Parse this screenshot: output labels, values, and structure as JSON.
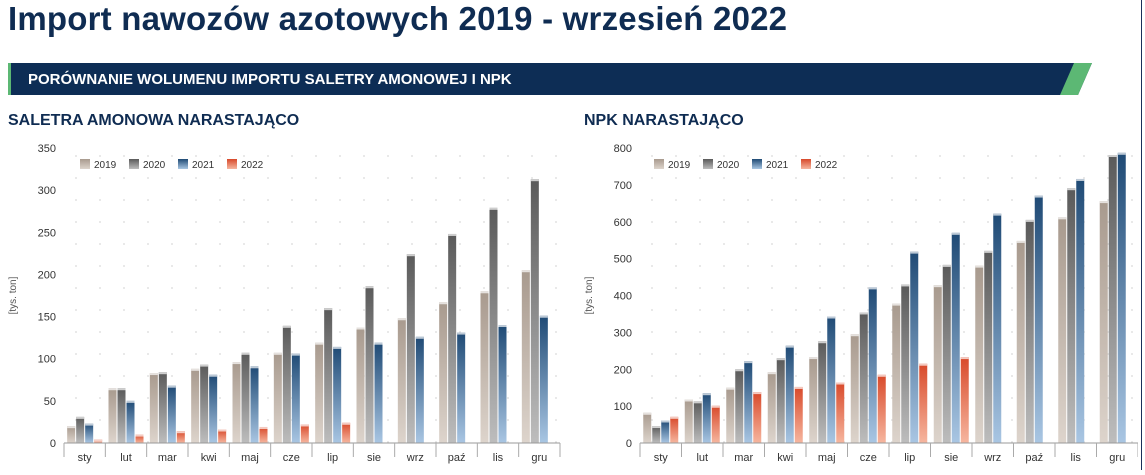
{
  "header": {
    "title": "Import nawozów azotowych 2019 - wrzesień 2022",
    "banner": "PORÓWNANIE WOLUMENU IMPORTU SALETRY AMONOWEJ I NPK"
  },
  "colors": {
    "navy": "#0d2d55",
    "accent_green": "#5cb874",
    "s2019": "#c9bdb2",
    "s2020": "#8a8a8a",
    "s2021": "#2f5e8f",
    "s2022": "#e8603c"
  },
  "chart_data": [
    {
      "type": "bar",
      "title": "SALETRA AMONOWA NARASTAJĄCO",
      "ylabel": "[tys. ton]",
      "xlabel": "",
      "categories": [
        "sty",
        "lut",
        "mar",
        "kwi",
        "maj",
        "cze",
        "lip",
        "sie",
        "wrz",
        "paź",
        "lis",
        "gru"
      ],
      "ylim": [
        0,
        350
      ],
      "yticks": [
        0,
        50,
        100,
        150,
        200,
        250,
        300,
        350
      ],
      "grid": false,
      "legend": "top-left",
      "series": [
        {
          "name": "2019",
          "values": [
            20,
            65,
            83,
            88,
            96,
            107,
            119,
            137,
            148,
            167,
            180,
            205
          ]
        },
        {
          "name": "2020",
          "values": [
            31,
            65,
            84,
            93,
            107,
            139,
            160,
            186,
            224,
            248,
            279,
            313
          ]
        },
        {
          "name": "2021",
          "values": [
            23,
            50,
            68,
            81,
            91,
            106,
            114,
            119,
            126,
            131,
            140,
            151
          ]
        },
        {
          "name": "2022",
          "values": [
            4,
            10,
            14,
            16,
            19,
            22,
            24,
            null,
            null,
            null,
            null,
            null
          ]
        }
      ]
    },
    {
      "type": "bar",
      "title": "NPK NARASTAJĄCO",
      "ylabel": "[tys. ton]",
      "xlabel": "",
      "categories": [
        "sty",
        "lut",
        "mar",
        "kwi",
        "maj",
        "cze",
        "lip",
        "sie",
        "wrz",
        "paź",
        "lis",
        "gru"
      ],
      "ylim": [
        0,
        800
      ],
      "yticks": [
        0,
        100,
        200,
        300,
        400,
        500,
        600,
        700,
        800
      ],
      "grid": false,
      "legend": "top-left",
      "series": [
        {
          "name": "2019",
          "values": [
            82,
            118,
            150,
            192,
            233,
            295,
            378,
            428,
            481,
            548,
            612,
            656
          ]
        },
        {
          "name": "2020",
          "values": [
            46,
            113,
            200,
            230,
            276,
            354,
            430,
            483,
            521,
            605,
            691,
            781
          ]
        },
        {
          "name": "2021",
          "values": [
            61,
            135,
            222,
            264,
            343,
            422,
            519,
            570,
            622,
            671,
            716,
            787
          ]
        },
        {
          "name": "2022",
          "values": [
            71,
            101,
            138,
            152,
            164,
            185,
            215,
            233,
            null,
            null,
            null,
            null
          ]
        }
      ]
    }
  ]
}
